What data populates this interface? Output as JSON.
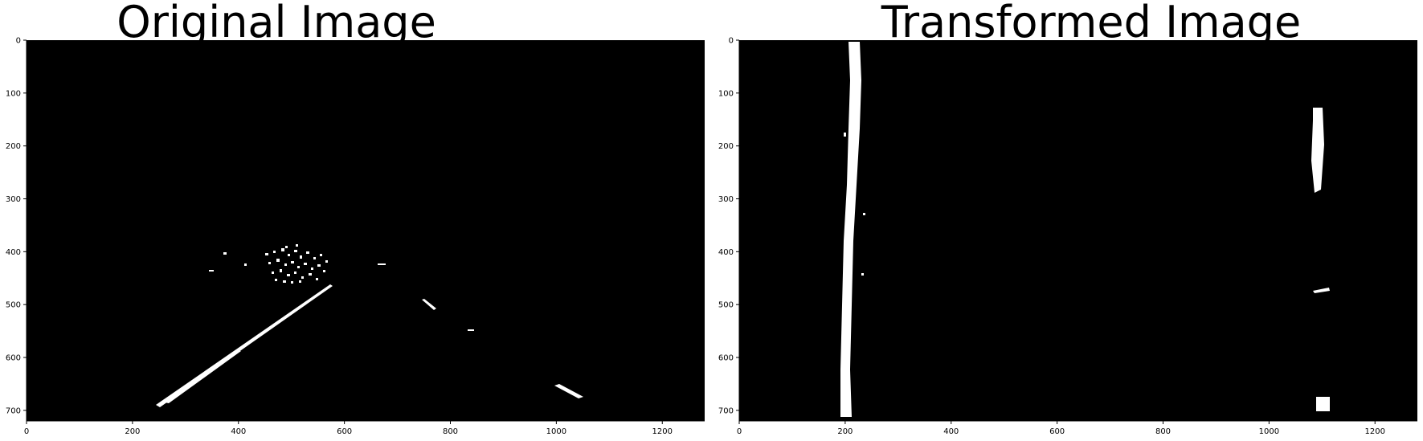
{
  "panels": [
    {
      "title": "Original Image",
      "x_ticks": [
        "0",
        "200",
        "400",
        "600",
        "800",
        "1000",
        "1200"
      ],
      "y_ticks": [
        "0",
        "100",
        "200",
        "300",
        "400",
        "500",
        "600",
        "700"
      ]
    },
    {
      "title": "Transformed Image",
      "x_ticks": [
        "0",
        "200",
        "400",
        "600",
        "800",
        "1000",
        "1200"
      ],
      "y_ticks": [
        "0",
        "100",
        "200",
        "300",
        "400",
        "500",
        "600",
        "700"
      ]
    }
  ],
  "colors": {
    "image_background": "#000000",
    "lane_pixels": "#ffffff"
  }
}
